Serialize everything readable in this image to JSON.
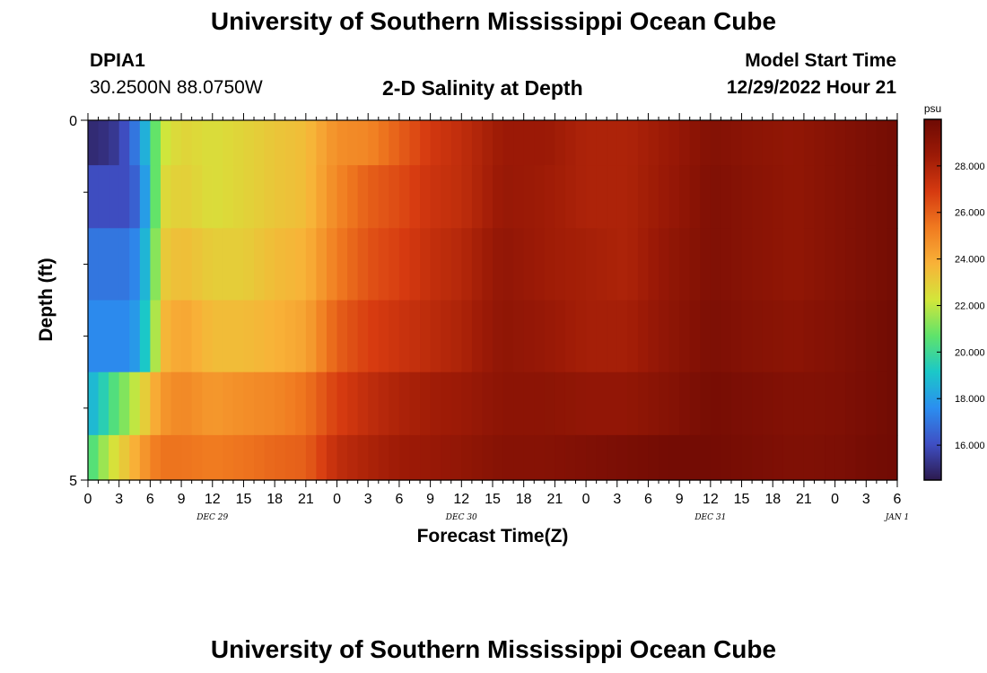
{
  "header": {
    "title": "University of Southern Mississippi Ocean Cube",
    "station_id": "DPIA1",
    "station_coords": "30.2500N  88.0750W",
    "plot_title": "2-D Salinity at Depth",
    "model_start_label": "Model Start Time",
    "model_start_value": "12/29/2022 Hour 21"
  },
  "footer": {
    "title": "University of Southern Mississippi Ocean Cube"
  },
  "colors": {
    "scale": [
      "#2c1a4e",
      "#3f4fc4",
      "#2b8ef0",
      "#1bc8c8",
      "#5fe36b",
      "#d3e63a",
      "#f8b238",
      "#f07a20",
      "#d63a10",
      "#9c1a06",
      "#6e0a04"
    ]
  },
  "chart_data": {
    "type": "heatmap",
    "xlabel": "Forecast Time(Z)",
    "ylabel": "Depth (ft)",
    "y_ticks": [
      "0",
      "5"
    ],
    "ylim": [
      0,
      5
    ],
    "x_tick_labels": [
      "0",
      "3",
      "6",
      "9",
      "12",
      "15",
      "18",
      "21",
      "0",
      "3",
      "6",
      "9",
      "12",
      "15",
      "18",
      "21",
      "0",
      "3",
      "6",
      "9",
      "12",
      "15",
      "18",
      "21",
      "0",
      "3",
      "6"
    ],
    "x_hours_per_tick": 3,
    "date_labels": [
      {
        "text": "DEC 29",
        "hour": 12
      },
      {
        "text": "DEC 30",
        "hour": 36
      },
      {
        "text": "DEC 31",
        "hour": 60
      },
      {
        "text": "JAN 1",
        "hour": 78
      }
    ],
    "colorbar": {
      "unit": "psu",
      "tick_labels": [
        "16.000",
        "18.000",
        "20.000",
        "22.000",
        "24.000",
        "26.000",
        "28.000"
      ],
      "tick_values": [
        16,
        18,
        20,
        22,
        24,
        26,
        28
      ],
      "range": [
        14.5,
        30
      ]
    },
    "depth_rows": [
      0.25,
      1.0,
      2.0,
      3.0,
      4.0,
      4.75
    ],
    "profiles": [
      {
        "hours": [
          0,
          1,
          3,
          4,
          5,
          6,
          7,
          9,
          12,
          15,
          18,
          21,
          24,
          27,
          30,
          33,
          36,
          40,
          44,
          48,
          52,
          56,
          60,
          64,
          68,
          72,
          76,
          78
        ],
        "values": [
          15.0,
          15.0,
          15.5,
          16.5,
          17.5,
          19.5,
          22.0,
          22.8,
          22.5,
          22.8,
          23.2,
          23.5,
          24.8,
          25.0,
          26.0,
          27.0,
          27.5,
          28.5,
          28.5,
          28.0,
          28.0,
          28.5,
          29.3,
          29.0,
          28.8,
          29.2,
          29.6,
          29.8
        ]
      },
      {
        "hours": [
          0,
          4,
          5,
          6,
          7,
          9,
          12,
          15,
          18,
          21,
          24,
          27,
          30,
          33,
          36,
          40,
          44,
          48,
          52,
          56,
          60,
          64,
          68,
          72,
          76,
          78
        ],
        "values": [
          16.0,
          16.0,
          17.0,
          19.0,
          22.5,
          23.0,
          22.5,
          22.8,
          23.2,
          23.5,
          25.0,
          26.0,
          26.5,
          27.2,
          27.5,
          28.6,
          28.4,
          28.0,
          28.0,
          28.6,
          29.4,
          29.1,
          28.8,
          29.2,
          29.6,
          29.8
        ]
      },
      {
        "hours": [
          0,
          4,
          5,
          6,
          7,
          9,
          12,
          15,
          18,
          21,
          24,
          27,
          30,
          33,
          36,
          40,
          44,
          48,
          52,
          56,
          60,
          64,
          68,
          72,
          76,
          78
        ],
        "values": [
          17.0,
          17.0,
          17.8,
          19.5,
          23.0,
          23.5,
          23.0,
          23.0,
          23.5,
          23.8,
          25.3,
          26.3,
          26.8,
          27.4,
          27.8,
          28.8,
          28.4,
          28.2,
          28.0,
          28.8,
          29.4,
          29.1,
          28.8,
          29.2,
          29.6,
          29.8
        ]
      },
      {
        "hours": [
          0,
          4,
          5,
          6,
          7,
          9,
          12,
          15,
          18,
          21,
          24,
          27,
          30,
          33,
          36,
          40,
          44,
          48,
          52,
          56,
          60,
          64,
          68,
          72,
          76,
          78
        ],
        "values": [
          17.5,
          17.5,
          18.3,
          20.0,
          23.5,
          24.2,
          23.5,
          23.5,
          23.8,
          24.2,
          26.0,
          26.8,
          27.2,
          27.6,
          28.0,
          28.9,
          28.6,
          28.2,
          28.2,
          28.9,
          29.5,
          29.2,
          29.0,
          29.3,
          29.7,
          29.9
        ]
      },
      {
        "hours": [
          0,
          1,
          2,
          3,
          4,
          5,
          6,
          7,
          9,
          12,
          15,
          18,
          21,
          24,
          27,
          30,
          33,
          36,
          40,
          44,
          48,
          52,
          56,
          60,
          64,
          68,
          72,
          76,
          78
        ],
        "values": [
          18.5,
          19.0,
          20.0,
          20.8,
          21.5,
          22.5,
          23.5,
          24.5,
          25.0,
          24.5,
          24.8,
          25.0,
          25.5,
          26.8,
          27.5,
          28.0,
          28.3,
          28.5,
          29.0,
          29.0,
          28.8,
          28.8,
          29.2,
          29.7,
          29.5,
          29.3,
          29.4,
          29.7,
          29.9
        ]
      },
      {
        "hours": [
          0,
          1,
          2,
          3,
          4,
          5,
          6,
          7,
          9,
          12,
          15,
          18,
          21,
          24,
          27,
          30,
          33,
          36,
          40,
          44,
          48,
          52,
          56,
          60,
          64,
          68,
          72,
          76,
          78
        ],
        "values": [
          20.0,
          21.0,
          22.0,
          22.8,
          23.5,
          24.2,
          25.0,
          25.5,
          25.5,
          25.3,
          25.5,
          25.8,
          26.0,
          27.5,
          28.0,
          28.4,
          28.6,
          28.8,
          29.2,
          29.2,
          29.4,
          29.6,
          29.8,
          29.8,
          29.6,
          29.4,
          29.5,
          29.8,
          29.9
        ]
      }
    ]
  }
}
